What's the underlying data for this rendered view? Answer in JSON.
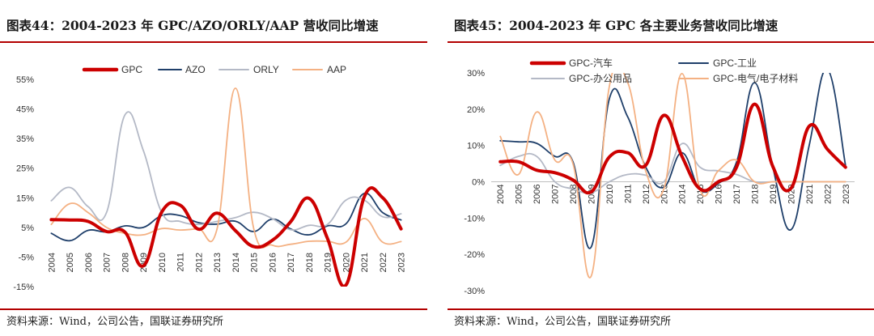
{
  "colors": {
    "gpc": "#cc0000",
    "navy": "#1f3f6a",
    "gray": "#b4b9c6",
    "orange": "#f4b183",
    "rule": "#b30000"
  },
  "panels": [
    {
      "title": "图表44：2004-2023 年 GPC/AZO/ORLY/AAP 营收同比增速",
      "source": "资料来源：Wind，公司公告，国联证券研究所"
    },
    {
      "title": "图表45：2004-2023 年 GPC 各主要业务营收同比增速",
      "source": "资料来源：Wind，公司公告，国联证券研究所"
    }
  ],
  "chart_data": [
    {
      "type": "line",
      "smooth": true,
      "x": [
        "2004",
        "2005",
        "2006",
        "2007",
        "2008",
        "2009",
        "2010",
        "2011",
        "2012",
        "2013",
        "2014",
        "2015",
        "2016",
        "2017",
        "2018",
        "2019",
        "2020",
        "2021",
        "2022",
        "2023"
      ],
      "y_ticks": [
        "55%",
        "45%",
        "35%",
        "25%",
        "15%",
        "5%",
        "-5%",
        "-15%"
      ],
      "ylim": [
        -15,
        55
      ],
      "legend_position": "top",
      "series": [
        {
          "name": "GPC",
          "color_key": "gpc",
          "width": 4,
          "values": [
            7.6,
            7.5,
            7.0,
            3.6,
            3.4,
            -8.0,
            10.2,
            12.5,
            4.4,
            9.8,
            3.9,
            -1.5,
            0.6,
            6.9,
            14.8,
            1.3,
            -14.5,
            15.3,
            15.0,
            4.5
          ]
        },
        {
          "name": "AZO",
          "color_key": "navy",
          "width": 1.8,
          "values": [
            3.0,
            0.5,
            4.0,
            3.5,
            5.5,
            5.0,
            9.0,
            9.0,
            6.6,
            6.1,
            7.1,
            3.6,
            7.8,
            4.5,
            2.5,
            5.5,
            6.2,
            16.5,
            10.0,
            7.5
          ]
        },
        {
          "name": "ORLY",
          "color_key": "gray",
          "width": 1.8,
          "values": [
            14.0,
            18.5,
            12.0,
            10.0,
            43.0,
            31.0,
            10.0,
            7.0,
            6.0,
            7.0,
            8.3,
            10.1,
            8.0,
            4.2,
            5.7,
            6.0,
            14.2,
            14.2,
            8.6,
            9.6
          ]
        },
        {
          "name": "AAP",
          "color_key": "orange",
          "width": 1.8,
          "values": [
            6.0,
            13.0,
            10.0,
            5.0,
            3.0,
            2.5,
            4.6,
            4.1,
            4.5,
            4.4,
            52.0,
            4.5,
            -1.0,
            -0.7,
            0.3,
            0.3,
            0.0,
            8.0,
            0.0,
            0.2
          ]
        }
      ]
    },
    {
      "type": "line",
      "smooth": true,
      "x": [
        "2004",
        "2005",
        "2006",
        "2007",
        "2008",
        "2009",
        "2010",
        "2011",
        "2012",
        "2013",
        "2014",
        "2015",
        "2016",
        "2017",
        "2018",
        "2019",
        "2020",
        "2021",
        "2022",
        "2023"
      ],
      "y_ticks": [
        "30%",
        "20%",
        "10%",
        "0%",
        "-10%",
        "-20%",
        "-30%"
      ],
      "ylim": [
        -30,
        30
      ],
      "legend_position": "top",
      "series": [
        {
          "name": "GPC-汽车",
          "color_key": "gpc",
          "width": 4,
          "values": [
            5.5,
            5.5,
            3.2,
            2.5,
            0.5,
            -2.8,
            6.8,
            8.0,
            4.5,
            18.3,
            7.0,
            -2.0,
            0.0,
            4.0,
            21.4,
            4.2,
            -1.8,
            15.3,
            9.0,
            4.0
          ]
        },
        {
          "name": "GPC-工业",
          "color_key": "navy",
          "width": 1.8,
          "values": [
            11.3,
            11.0,
            10.6,
            7.0,
            5.5,
            -18.0,
            22.8,
            18.0,
            4.1,
            -1.5,
            8.0,
            -2.2,
            -0.5,
            5.4,
            27.3,
            4.0,
            -13.2,
            10.0,
            31.0,
            4.5
          ]
        },
        {
          "name": "GPC-办公用品",
          "color_key": "gray",
          "width": 1.8,
          "values": [
            4.5,
            7.0,
            7.0,
            0.0,
            -2.0,
            -3.0,
            0.0,
            2.0,
            1.8,
            0.0,
            10.5,
            4.0,
            3.0,
            2.0,
            0.0,
            0.0,
            0.0,
            0.0,
            0.0,
            0.0
          ]
        },
        {
          "name": "GPC-电气/电子材料",
          "color_key": "orange",
          "width": 1.8,
          "values": [
            12.5,
            2.0,
            19.2,
            6.0,
            5.0,
            -26.0,
            26.2,
            27.5,
            3.0,
            -2.0,
            29.8,
            -2.3,
            3.0,
            6.0,
            0.0,
            0.0,
            0.0,
            0.0,
            0.0,
            0.0
          ]
        }
      ]
    }
  ]
}
